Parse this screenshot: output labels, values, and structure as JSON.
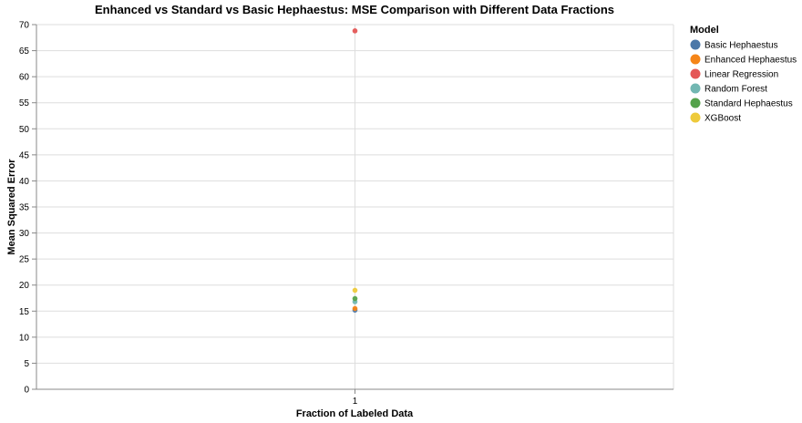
{
  "chart_data": {
    "type": "scatter",
    "title": "Enhanced vs Standard vs Basic Hephaestus: MSE Comparison with Different Data Fractions",
    "xlabel": "Fraction of Labeled Data",
    "ylabel": "Mean Squared Error",
    "x_categories": [
      "1"
    ],
    "ylim": [
      0,
      70
    ],
    "y_ticks": [
      0,
      5,
      10,
      15,
      20,
      25,
      30,
      35,
      40,
      45,
      50,
      55,
      60,
      65,
      70
    ],
    "grid": true,
    "legend": {
      "title": "Model",
      "position": "right"
    },
    "series": [
      {
        "name": "Basic Hephaestus",
        "color": "#4c78a8",
        "points": [
          {
            "x": "1",
            "y": 15.2
          }
        ]
      },
      {
        "name": "Enhanced Hephaestus",
        "color": "#f58518",
        "points": [
          {
            "x": "1",
            "y": 15.5
          }
        ]
      },
      {
        "name": "Linear Regression",
        "color": "#e45756",
        "points": [
          {
            "x": "1",
            "y": 68.8
          }
        ]
      },
      {
        "name": "Random Forest",
        "color": "#72b7b2",
        "points": [
          {
            "x": "1",
            "y": 16.8
          }
        ]
      },
      {
        "name": "Standard Hephaestus",
        "color": "#54a24b",
        "points": [
          {
            "x": "1",
            "y": 17.4
          }
        ]
      },
      {
        "name": "XGBoost",
        "color": "#eeca3b",
        "points": [
          {
            "x": "1",
            "y": 19.0
          }
        ]
      }
    ]
  }
}
